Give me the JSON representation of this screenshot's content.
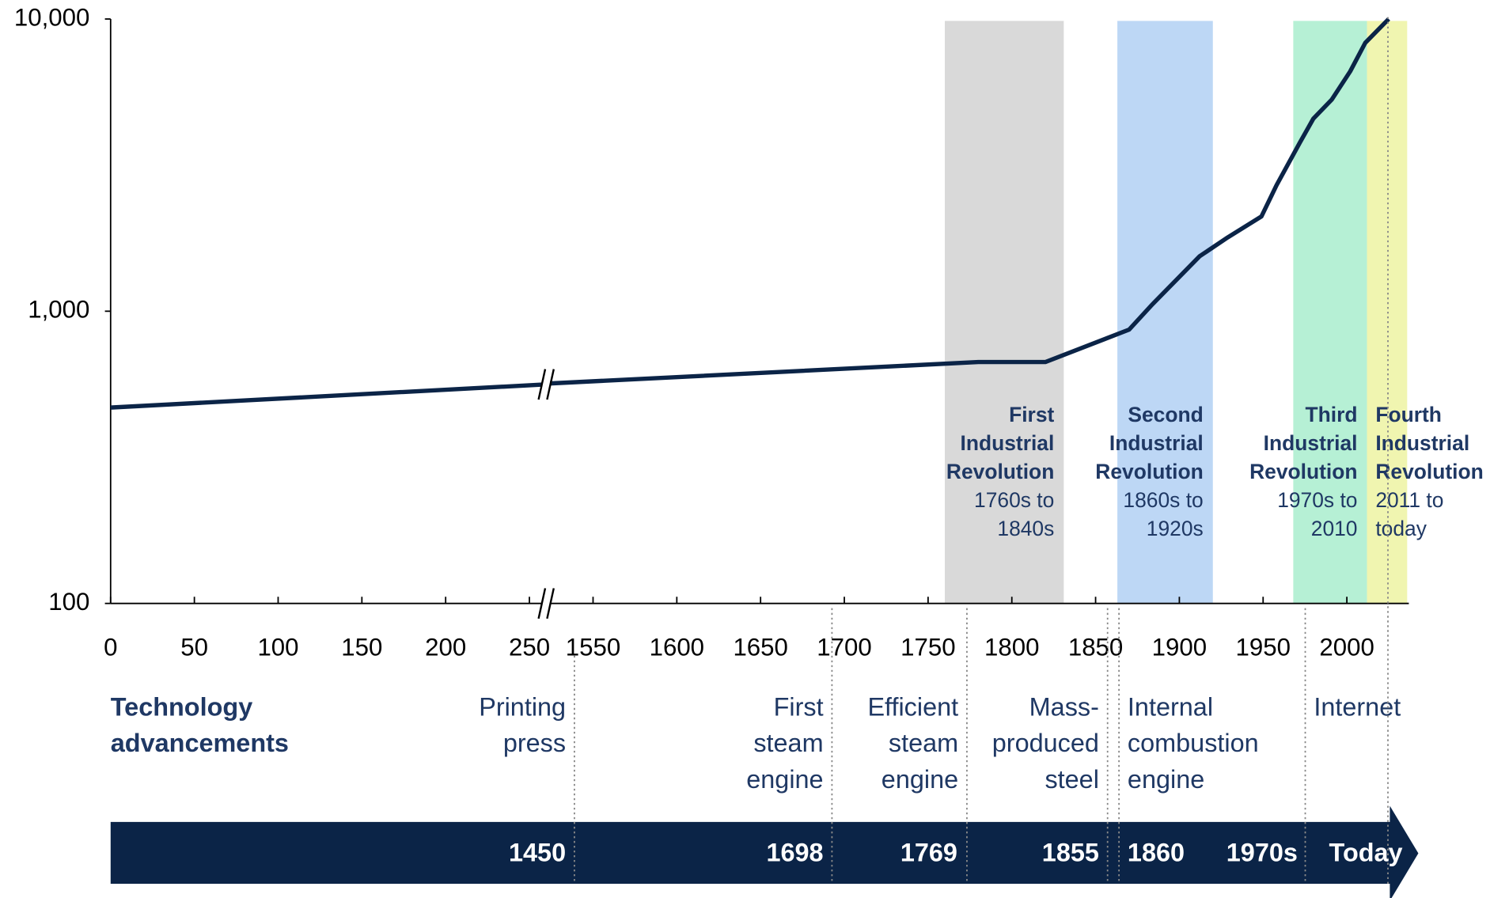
{
  "chart_data": {
    "type": "line",
    "color": "#0b2447",
    "log_y": true,
    "ylim": [
      100,
      10000
    ],
    "yticks": [
      100,
      {
        "value": 1000,
        "label": "1,000"
      },
      {
        "value": 10000,
        "label": "10,000"
      }
    ],
    "xlim": [
      0,
      2037
    ],
    "xbreak": [
      260,
      1522
    ],
    "xticks": [
      0,
      50,
      100,
      150,
      200,
      250,
      1550,
      1600,
      1650,
      1700,
      1750,
      1800,
      1850,
      1900,
      1950,
      2000
    ],
    "x": [
      0,
      260,
      1522,
      1780,
      1820,
      1870,
      1884,
      1912,
      1929,
      1949,
      1958,
      1972,
      1980,
      1991,
      2002,
      2011,
      2025
    ],
    "values": [
      468,
      562,
      565,
      670,
      670,
      865,
      1057,
      1540,
      1790,
      2110,
      2700,
      3780,
      4560,
      5300,
      6620,
      8290,
      10000
    ],
    "bands": [
      {
        "start": 1760,
        "end": 1831,
        "color": "#d9d9d9",
        "label_lines": [
          "First",
          "Industrial",
          "Revolution"
        ],
        "period_lines": [
          "1760s to",
          "1840s"
        ]
      },
      {
        "start": 1863,
        "end": 1920,
        "color": "#bdd7f5",
        "label_lines": [
          "Second",
          "Industrial",
          "Revolution"
        ],
        "period_lines": [
          "1860s to",
          "1920s"
        ]
      },
      {
        "start": 1968,
        "end": 2012,
        "color": "#b6f0d5",
        "label_lines": [
          "Third",
          "Industrial",
          "Revolution"
        ],
        "period_lines": [
          "1970s to",
          "2010"
        ]
      },
      {
        "start": 2012,
        "end": 2036,
        "color": "#f0f5b0",
        "label_lines": [
          "Fourth",
          "Industrial",
          "Revolution"
        ],
        "period_lines": [
          "2011 to",
          "today"
        ]
      }
    ]
  },
  "timeline": {
    "heading_lines": [
      "Technology",
      "advancements"
    ],
    "events": [
      {
        "name_lines": [
          "Printing",
          "press"
        ],
        "date": "1450"
      },
      {
        "name_lines": [
          "First",
          "steam",
          "engine"
        ],
        "date": "1698"
      },
      {
        "name_lines": [
          "Efficient",
          "steam",
          "engine"
        ],
        "date": "1769"
      },
      {
        "name_lines": [
          "Mass-",
          "produced",
          "steel"
        ],
        "date": "1855"
      },
      {
        "name_lines": [
          "Internal",
          "combustion",
          "engine"
        ],
        "date": "1860"
      },
      {
        "name_lines": [
          "Internet"
        ],
        "date": "1970s"
      },
      {
        "name_lines": [],
        "date": "Today"
      }
    ]
  }
}
